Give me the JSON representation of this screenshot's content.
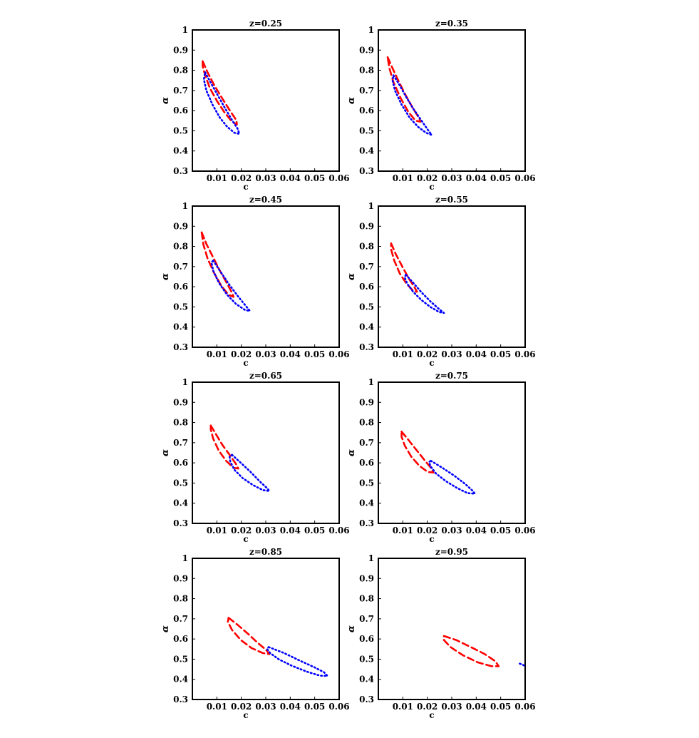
{
  "chart_data": [
    {
      "type": "line",
      "title": "z=0.25",
      "xlabel": "c",
      "ylabel": "α",
      "xlim": [
        0,
        0.06
      ],
      "ylim": [
        0.3,
        1
      ],
      "xticks": [
        "0.01",
        "0.02",
        "0.03",
        "0.04",
        "0.05",
        "0.06"
      ],
      "yticks": [
        "0.3",
        "0.4",
        "0.5",
        "0.6",
        "0.7",
        "0.8",
        "0.9",
        "1"
      ],
      "series": [
        {
          "style": "dashed",
          "color": "#ff0000",
          "points": [
            [
              0.0042,
              0.845
            ],
            [
              0.0062,
              0.79
            ],
            [
              0.0092,
              0.72
            ],
            [
              0.0125,
              0.655
            ],
            [
              0.0155,
              0.597
            ],
            [
              0.018,
              0.552
            ],
            [
              0.0182,
              0.532
            ],
            [
              0.0162,
              0.545
            ],
            [
              0.0132,
              0.59
            ],
            [
              0.0102,
              0.645
            ],
            [
              0.0072,
              0.71
            ],
            [
              0.0052,
              0.775
            ],
            [
              0.0042,
              0.82
            ],
            [
              0.0042,
              0.845
            ]
          ]
        },
        {
          "style": "dotted",
          "color": "#0000ff",
          "points": [
            [
              0.0052,
              0.79
            ],
            [
              0.0072,
              0.745
            ],
            [
              0.0102,
              0.68
            ],
            [
              0.0132,
              0.615
            ],
            [
              0.0162,
              0.553
            ],
            [
              0.0185,
              0.51
            ],
            [
              0.0192,
              0.485
            ],
            [
              0.0172,
              0.49
            ],
            [
              0.0142,
              0.52
            ],
            [
              0.0112,
              0.565
            ],
            [
              0.0082,
              0.63
            ],
            [
              0.0057,
              0.7
            ],
            [
              0.0047,
              0.755
            ],
            [
              0.0052,
              0.79
            ]
          ]
        }
      ]
    },
    {
      "type": "line",
      "title": "z=0.35",
      "xlabel": "c",
      "ylabel": "α",
      "xlim": [
        0,
        0.06
      ],
      "ylim": [
        0.3,
        1
      ],
      "xticks": [
        "0.01",
        "0.02",
        "0.03",
        "0.04",
        "0.05",
        "0.06"
      ],
      "yticks": [
        "0.3",
        "0.4",
        "0.5",
        "0.6",
        "0.7",
        "0.8",
        "0.9",
        "1"
      ],
      "series": [
        {
          "style": "dashed",
          "color": "#ff0000",
          "points": [
            [
              0.0038,
              0.865
            ],
            [
              0.0058,
              0.81
            ],
            [
              0.0085,
              0.74
            ],
            [
              0.0112,
              0.675
            ],
            [
              0.0142,
              0.61
            ],
            [
              0.0168,
              0.56
            ],
            [
              0.0172,
              0.545
            ],
            [
              0.0152,
              0.55
            ],
            [
              0.0122,
              0.595
            ],
            [
              0.0092,
              0.66
            ],
            [
              0.0062,
              0.74
            ],
            [
              0.0045,
              0.81
            ],
            [
              0.0038,
              0.865
            ]
          ]
        },
        {
          "style": "dotted",
          "color": "#0000ff",
          "points": [
            [
              0.0062,
              0.775
            ],
            [
              0.0085,
              0.73
            ],
            [
              0.0115,
              0.665
            ],
            [
              0.0145,
              0.605
            ],
            [
              0.0178,
              0.548
            ],
            [
              0.0205,
              0.5
            ],
            [
              0.0218,
              0.48
            ],
            [
              0.0195,
              0.49
            ],
            [
              0.0162,
              0.52
            ],
            [
              0.0128,
              0.565
            ],
            [
              0.0095,
              0.63
            ],
            [
              0.0068,
              0.7
            ],
            [
              0.0058,
              0.75
            ],
            [
              0.0062,
              0.775
            ]
          ]
        }
      ]
    },
    {
      "type": "line",
      "title": "z=0.45",
      "xlabel": "c",
      "ylabel": "α",
      "xlim": [
        0,
        0.06
      ],
      "ylim": [
        0.3,
        1
      ],
      "xticks": [
        "0.01",
        "0.02",
        "0.03",
        "0.04",
        "0.05",
        "0.06"
      ],
      "yticks": [
        "0.3",
        "0.4",
        "0.5",
        "0.6",
        "0.7",
        "0.8",
        "0.9",
        "1"
      ],
      "series": [
        {
          "style": "dashed",
          "color": "#ff0000",
          "points": [
            [
              0.0038,
              0.87
            ],
            [
              0.0058,
              0.81
            ],
            [
              0.0085,
              0.745
            ],
            [
              0.0112,
              0.68
            ],
            [
              0.0142,
              0.615
            ],
            [
              0.0162,
              0.57
            ],
            [
              0.0168,
              0.55
            ],
            [
              0.0148,
              0.56
            ],
            [
              0.0118,
              0.605
            ],
            [
              0.0088,
              0.67
            ],
            [
              0.0062,
              0.74
            ],
            [
              0.0045,
              0.81
            ],
            [
              0.0038,
              0.87
            ]
          ]
        },
        {
          "style": "dotted",
          "color": "#0000ff",
          "points": [
            [
              0.0085,
              0.73
            ],
            [
              0.0112,
              0.68
            ],
            [
              0.0148,
              0.615
            ],
            [
              0.0185,
              0.555
            ],
            [
              0.0215,
              0.51
            ],
            [
              0.0235,
              0.48
            ],
            [
              0.0215,
              0.485
            ],
            [
              0.0178,
              0.515
            ],
            [
              0.0142,
              0.56
            ],
            [
              0.0108,
              0.62
            ],
            [
              0.0085,
              0.68
            ],
            [
              0.0078,
              0.72
            ],
            [
              0.0085,
              0.73
            ]
          ]
        }
      ]
    },
    {
      "type": "line",
      "title": "z=0.55",
      "xlabel": "c",
      "ylabel": "α",
      "xlim": [
        0,
        0.06
      ],
      "ylim": [
        0.3,
        1
      ],
      "xticks": [
        "0.01",
        "0.02",
        "0.03",
        "0.04",
        "0.05",
        "0.06"
      ],
      "yticks": [
        "0.3",
        "0.4",
        "0.5",
        "0.6",
        "0.7",
        "0.8",
        "0.9",
        "1"
      ],
      "series": [
        {
          "style": "dashed",
          "color": "#ff0000",
          "points": [
            [
              0.0052,
              0.815
            ],
            [
              0.0072,
              0.76
            ],
            [
              0.0098,
              0.7
            ],
            [
              0.0125,
              0.64
            ],
            [
              0.0148,
              0.597
            ],
            [
              0.0158,
              0.575
            ],
            [
              0.0142,
              0.58
            ],
            [
              0.0115,
              0.615
            ],
            [
              0.0088,
              0.665
            ],
            [
              0.0065,
              0.73
            ],
            [
              0.0052,
              0.785
            ],
            [
              0.0052,
              0.815
            ]
          ]
        },
        {
          "style": "dotted",
          "color": "#0000ff",
          "points": [
            [
              0.0112,
              0.66
            ],
            [
              0.0142,
              0.62
            ],
            [
              0.0178,
              0.57
            ],
            [
              0.0215,
              0.525
            ],
            [
              0.0248,
              0.49
            ],
            [
              0.0268,
              0.47
            ],
            [
              0.0248,
              0.475
            ],
            [
              0.0212,
              0.5
            ],
            [
              0.0175,
              0.535
            ],
            [
              0.0142,
              0.575
            ],
            [
              0.0118,
              0.615
            ],
            [
              0.0108,
              0.645
            ],
            [
              0.0112,
              0.66
            ]
          ]
        }
      ]
    },
    {
      "type": "line",
      "title": "z=0.65",
      "xlabel": "c",
      "ylabel": "α",
      "xlim": [
        0,
        0.06
      ],
      "ylim": [
        0.3,
        1
      ],
      "xticks": [
        "0.01",
        "0.02",
        "0.03",
        "0.04",
        "0.05",
        "0.06"
      ],
      "yticks": [
        "0.3",
        "0.4",
        "0.5",
        "0.6",
        "0.7",
        "0.8",
        "0.9",
        "1"
      ],
      "series": [
        {
          "style": "dashed",
          "color": "#ff0000",
          "points": [
            [
              0.0075,
              0.785
            ],
            [
              0.0095,
              0.745
            ],
            [
              0.0122,
              0.69
            ],
            [
              0.0152,
              0.64
            ],
            [
              0.0178,
              0.595
            ],
            [
              0.0188,
              0.572
            ],
            [
              0.0168,
              0.575
            ],
            [
              0.0138,
              0.61
            ],
            [
              0.0108,
              0.66
            ],
            [
              0.0085,
              0.72
            ],
            [
              0.0075,
              0.765
            ],
            [
              0.0075,
              0.785
            ]
          ]
        },
        {
          "style": "dotted",
          "color": "#0000ff",
          "points": [
            [
              0.0162,
              0.64
            ],
            [
              0.0198,
              0.6
            ],
            [
              0.0238,
              0.555
            ],
            [
              0.0278,
              0.505
            ],
            [
              0.0305,
              0.475
            ],
            [
              0.0315,
              0.46
            ],
            [
              0.0288,
              0.465
            ],
            [
              0.0248,
              0.49
            ],
            [
              0.0205,
              0.525
            ],
            [
              0.0172,
              0.565
            ],
            [
              0.0155,
              0.605
            ],
            [
              0.0152,
              0.63
            ],
            [
              0.0162,
              0.64
            ]
          ]
        }
      ]
    },
    {
      "type": "line",
      "title": "z=0.75",
      "xlabel": "c",
      "ylabel": "α",
      "xlim": [
        0,
        0.06
      ],
      "ylim": [
        0.3,
        1
      ],
      "xticks": [
        "0.01",
        "0.02",
        "0.03",
        "0.04",
        "0.05",
        "0.06"
      ],
      "yticks": [
        "0.3",
        "0.4",
        "0.5",
        "0.6",
        "0.7",
        "0.8",
        "0.9",
        "1"
      ],
      "series": [
        {
          "style": "dashed",
          "color": "#ff0000",
          "points": [
            [
              0.0095,
              0.755
            ],
            [
              0.0122,
              0.715
            ],
            [
              0.0155,
              0.665
            ],
            [
              0.0188,
              0.615
            ],
            [
              0.0215,
              0.575
            ],
            [
              0.0225,
              0.552
            ],
            [
              0.0202,
              0.555
            ],
            [
              0.0168,
              0.585
            ],
            [
              0.0135,
              0.63
            ],
            [
              0.0108,
              0.685
            ],
            [
              0.0095,
              0.73
            ],
            [
              0.0095,
              0.755
            ]
          ]
        },
        {
          "style": "dotted",
          "color": "#0000ff",
          "points": [
            [
              0.0215,
              0.61
            ],
            [
              0.0262,
              0.575
            ],
            [
              0.0312,
              0.535
            ],
            [
              0.0355,
              0.495
            ],
            [
              0.0385,
              0.462
            ],
            [
              0.0395,
              0.447
            ],
            [
              0.0365,
              0.45
            ],
            [
              0.0322,
              0.475
            ],
            [
              0.0275,
              0.51
            ],
            [
              0.0235,
              0.548
            ],
            [
              0.0212,
              0.585
            ],
            [
              0.0208,
              0.605
            ],
            [
              0.0215,
              0.61
            ]
          ]
        }
      ]
    },
    {
      "type": "line",
      "title": "z=0.85",
      "xlabel": "c",
      "ylabel": "α",
      "xlim": [
        0,
        0.06
      ],
      "ylim": [
        0.3,
        1
      ],
      "xticks": [
        "0.01",
        "0.02",
        "0.03",
        "0.04",
        "0.05",
        "0.06"
      ],
      "yticks": [
        "0.3",
        "0.4",
        "0.5",
        "0.6",
        "0.7",
        "0.8",
        "0.9",
        "1"
      ],
      "series": [
        {
          "style": "dashed",
          "color": "#ff0000",
          "points": [
            [
              0.0148,
              0.705
            ],
            [
              0.0185,
              0.67
            ],
            [
              0.0228,
              0.625
            ],
            [
              0.0268,
              0.58
            ],
            [
              0.0302,
              0.545
            ],
            [
              0.0315,
              0.525
            ],
            [
              0.0288,
              0.53
            ],
            [
              0.0242,
              0.555
            ],
            [
              0.0198,
              0.595
            ],
            [
              0.0162,
              0.645
            ],
            [
              0.0145,
              0.685
            ],
            [
              0.0148,
              0.705
            ]
          ]
        },
        {
          "style": "dotted",
          "color": "#0000ff",
          "points": [
            [
              0.0312,
              0.56
            ],
            [
              0.0375,
              0.53
            ],
            [
              0.0435,
              0.495
            ],
            [
              0.0498,
              0.46
            ],
            [
              0.0538,
              0.435
            ],
            [
              0.0552,
              0.417
            ],
            [
              0.0522,
              0.418
            ],
            [
              0.0468,
              0.438
            ],
            [
              0.0405,
              0.468
            ],
            [
              0.0352,
              0.5
            ],
            [
              0.0318,
              0.53
            ],
            [
              0.0305,
              0.55
            ],
            [
              0.0312,
              0.56
            ]
          ]
        }
      ]
    },
    {
      "type": "line",
      "title": "z=0.95",
      "xlabel": "c",
      "ylabel": "α",
      "xlim": [
        0,
        0.06
      ],
      "ylim": [
        0.3,
        1
      ],
      "xticks": [
        "0.01",
        "0.02",
        "0.03",
        "0.04",
        "0.05",
        "0.06"
      ],
      "yticks": [
        "0.3",
        "0.4",
        "0.5",
        "0.6",
        "0.7",
        "0.8",
        "0.9",
        "1"
      ],
      "series": [
        {
          "style": "dashed",
          "color": "#ff0000",
          "points": [
            [
              0.0268,
              0.615
            ],
            [
              0.0318,
              0.595
            ],
            [
              0.0378,
              0.56
            ],
            [
              0.0435,
              0.525
            ],
            [
              0.0478,
              0.49
            ],
            [
              0.0492,
              0.465
            ],
            [
              0.0462,
              0.465
            ],
            [
              0.0405,
              0.485
            ],
            [
              0.0345,
              0.52
            ],
            [
              0.0295,
              0.56
            ],
            [
              0.0268,
              0.595
            ],
            [
              0.0268,
              0.615
            ]
          ]
        },
        {
          "style": "dotted",
          "color": "#0000ff",
          "points": [
            [
              0.0578,
              0.478
            ],
            [
              0.059,
              0.472
            ],
            [
              0.06,
              0.465
            ]
          ]
        }
      ]
    }
  ]
}
